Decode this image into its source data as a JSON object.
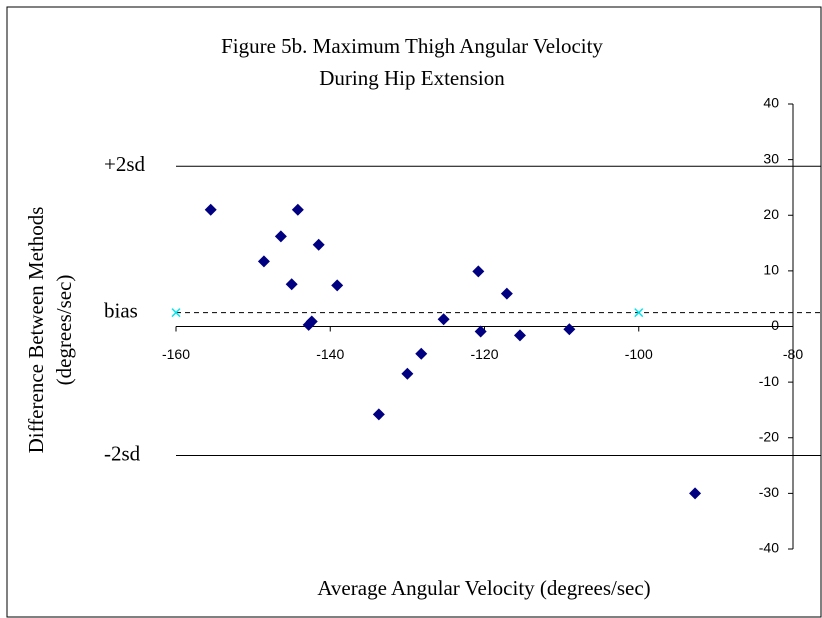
{
  "chart_data": {
    "type": "scatter",
    "title": [
      "Figure 5b.  Maximum Thigh Angular Velocity",
      "During Hip Extension"
    ],
    "x_label": "Average Angular Velocity (degrees/sec)",
    "y_label": [
      "Difference Between Methods",
      "(degrees/sec)"
    ],
    "xlim": [
      -160,
      -80
    ],
    "xticks": [
      -160,
      -140,
      -120,
      -100,
      -80
    ],
    "ylim": [
      -40,
      40
    ],
    "yticks": [
      -40,
      -30,
      -20,
      -10,
      0,
      10,
      20,
      30,
      40
    ],
    "reference_lines": [
      {
        "label": "+2sd",
        "value": 28.8,
        "style": "solid"
      },
      {
        "label": "bias",
        "value": 2.5,
        "style": "dashed"
      },
      {
        "label": "-2sd",
        "value": -23.2,
        "style": "solid"
      }
    ],
    "series": [
      {
        "color": "#000080",
        "marker": "diamond",
        "x": [
          -155.5,
          -144.2,
          -146.4,
          -141.5,
          -148.6,
          -145.0,
          -139.1,
          -120.8,
          -117.1,
          -125.3,
          -142.4,
          -142.8,
          -120.5,
          -115.4,
          -109.0,
          -128.2,
          -130.0,
          -133.7,
          -92.7
        ],
        "values": [
          21.0,
          21.0,
          16.2,
          14.7,
          11.7,
          7.6,
          7.4,
          9.9,
          5.9,
          1.3,
          0.9,
          0.3,
          -0.9,
          -1.6,
          -0.5,
          -4.9,
          -8.5,
          -15.8,
          -30.0
        ]
      },
      {
        "color": "#00e5ee",
        "marker": "x",
        "x": [
          -160,
          -100
        ],
        "values": [
          2.5,
          2.5
        ]
      }
    ]
  }
}
